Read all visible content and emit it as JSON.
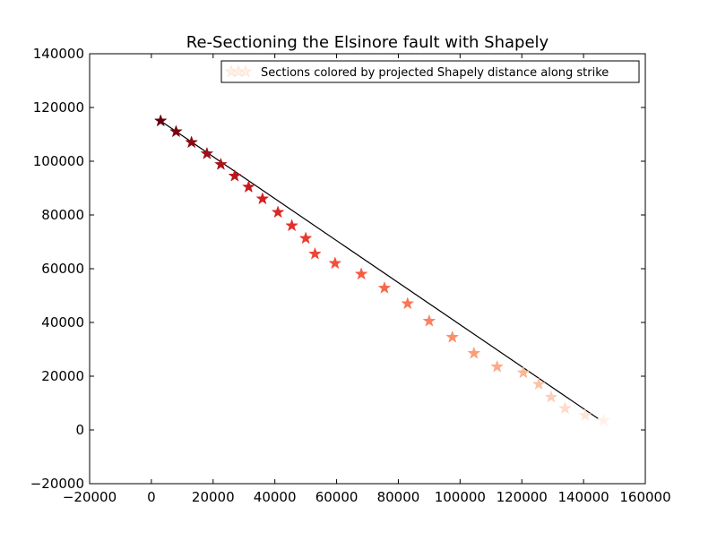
{
  "chart_data": {
    "type": "scatter",
    "title": "Re-Sectioning the Elsinore fault with Shapely",
    "xlabel": "",
    "ylabel": "",
    "xlim": [
      -20000,
      160000
    ],
    "ylim": [
      -20000,
      140000
    ],
    "xticks": [
      -20000,
      0,
      20000,
      40000,
      60000,
      80000,
      100000,
      120000,
      140000,
      160000
    ],
    "yticks": [
      -20000,
      0,
      20000,
      40000,
      60000,
      80000,
      100000,
      120000,
      140000
    ],
    "xtick_labels": [
      "−20000",
      "0",
      "20000",
      "40000",
      "60000",
      "80000",
      "100000",
      "120000",
      "140000",
      "160000"
    ],
    "ytick_labels": [
      "−20000",
      "0",
      "20000",
      "40000",
      "60000",
      "80000",
      "100000",
      "120000",
      "140000"
    ],
    "grid": false,
    "legend": {
      "placement": "top-right",
      "entries": [
        "Sections colored by projected Shapely distance along strike"
      ]
    },
    "fault_line": {
      "x": [
        3000,
        145000
      ],
      "y": [
        115000,
        4000
      ],
      "color": "#000000"
    },
    "series": [
      {
        "marker": "star",
        "colormap": "Reds (dark at start, light at end of strike)",
        "points": [
          {
            "x": 3000,
            "y": 115000,
            "color": "#67000d"
          },
          {
            "x": 8000,
            "y": 111000,
            "color": "#7a0510"
          },
          {
            "x": 13000,
            "y": 107000,
            "color": "#8c0a14"
          },
          {
            "x": 18000,
            "y": 102800,
            "color": "#9e0f17"
          },
          {
            "x": 22500,
            "y": 98800,
            "color": "#ad131a"
          },
          {
            "x": 27000,
            "y": 94500,
            "color": "#bb161c"
          },
          {
            "x": 31500,
            "y": 90400,
            "color": "#c7181f"
          },
          {
            "x": 36000,
            "y": 86000,
            "color": "#d21f21"
          },
          {
            "x": 41000,
            "y": 81000,
            "color": "#dc2825"
          },
          {
            "x": 45500,
            "y": 76000,
            "color": "#e3302a"
          },
          {
            "x": 50000,
            "y": 71300,
            "color": "#e83a2f"
          },
          {
            "x": 53000,
            "y": 65500,
            "color": "#ee4535"
          },
          {
            "x": 59500,
            "y": 62000,
            "color": "#f24f3a"
          },
          {
            "x": 68000,
            "y": 58000,
            "color": "#f55c42"
          },
          {
            "x": 75500,
            "y": 52800,
            "color": "#f7684b"
          },
          {
            "x": 83000,
            "y": 47000,
            "color": "#f97554"
          },
          {
            "x": 90000,
            "y": 40500,
            "color": "#fb825f"
          },
          {
            "x": 97500,
            "y": 34500,
            "color": "#fc8f6b"
          },
          {
            "x": 104500,
            "y": 28500,
            "color": "#fc9c78"
          },
          {
            "x": 112000,
            "y": 23500,
            "color": "#fcaa87"
          },
          {
            "x": 120500,
            "y": 21300,
            "color": "#fcb696"
          },
          {
            "x": 125500,
            "y": 17000,
            "color": "#fdc3a7"
          },
          {
            "x": 129500,
            "y": 12200,
            "color": "#fdcfb8"
          },
          {
            "x": 134000,
            "y": 8000,
            "color": "#fddbc8"
          },
          {
            "x": 140500,
            "y": 5400,
            "color": "#fee5d8"
          },
          {
            "x": 146500,
            "y": 3500,
            "color": "#fff0e8"
          }
        ]
      }
    ]
  }
}
